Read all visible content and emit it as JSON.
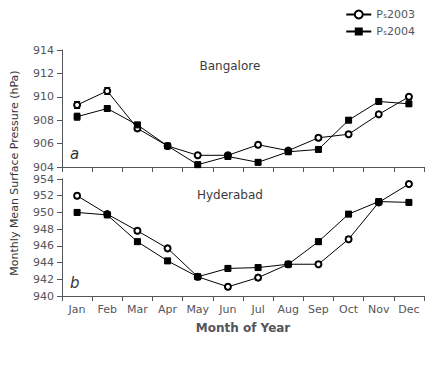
{
  "chart_data": [
    {
      "type": "line",
      "title": "Bangalore",
      "annotations": [
        "a"
      ],
      "ylabel": "Monthly Mean Surface Pressure (hPa)",
      "categories": [
        "Jan",
        "Feb",
        "Mar",
        "Apr",
        "May",
        "Jun",
        "Jul",
        "Aug",
        "Sep",
        "Oct",
        "Nov",
        "Dec"
      ],
      "series": [
        {
          "name": "Pₛ2003",
          "color": "#000000",
          "marker": "circle",
          "values": [
            909.3,
            910.5,
            907.3,
            905.8,
            905.0,
            905.0,
            905.9,
            905.4,
            906.5,
            906.8,
            908.5,
            910.0
          ],
          "errors": [
            0.3,
            0.3,
            0.2,
            0.2,
            0.2,
            0.2,
            0.2,
            0.2,
            0.2,
            0.2,
            0.2,
            0.2
          ]
        },
        {
          "name": "Pₛ2004",
          "color": "#000000",
          "marker": "square",
          "values": [
            908.3,
            909.0,
            907.6,
            905.8,
            904.2,
            904.9,
            904.4,
            905.3,
            905.5,
            908.0,
            909.6,
            909.4
          ],
          "errors": [
            0.3,
            0.2,
            0.2,
            0.2,
            0.2,
            0.2,
            0.2,
            0.2,
            0.2,
            0.2,
            0.2,
            0.2
          ]
        }
      ],
      "ylim": [
        904,
        914
      ],
      "yticks": [
        904,
        906,
        908,
        910,
        912,
        914
      ],
      "grid": false,
      "legend": "upper right",
      "tick_labels": "y"
    },
    {
      "type": "line",
      "title": "Hyderabad",
      "annotations": [
        "b"
      ],
      "xlabel": "Month of Year",
      "categories": [
        "Jan",
        "Feb",
        "Mar",
        "Apr",
        "May",
        "Jun",
        "Jul",
        "Aug",
        "Sep",
        "Oct",
        "Nov",
        "Dec"
      ],
      "series": [
        {
          "name": "Pₛ2003",
          "color": "#000000",
          "marker": "circle",
          "values": [
            952.0,
            949.8,
            947.8,
            945.7,
            942.3,
            941.1,
            942.2,
            943.8,
            943.8,
            946.8,
            951.2,
            953.4
          ],
          "errors": [
            0.3,
            0.3,
            0.3,
            0.3,
            0.3,
            0.3,
            0.3,
            0.3,
            0.3,
            0.3,
            0.3,
            0.3
          ]
        },
        {
          "name": "Pₛ2004",
          "color": "#000000",
          "marker": "square",
          "values": [
            950.0,
            949.7,
            946.5,
            944.2,
            942.3,
            943.3,
            943.4,
            943.8,
            946.5,
            949.8,
            951.3,
            951.2
          ],
          "errors": [
            0.3,
            0.3,
            0.3,
            0.3,
            0.3,
            0.3,
            0.3,
            0.3,
            0.3,
            0.3,
            0.3,
            0.3
          ]
        }
      ],
      "ylim": [
        940,
        954
      ],
      "yticks": [
        940,
        942,
        944,
        946,
        948,
        950,
        952,
        954
      ],
      "grid": false
    }
  ]
}
